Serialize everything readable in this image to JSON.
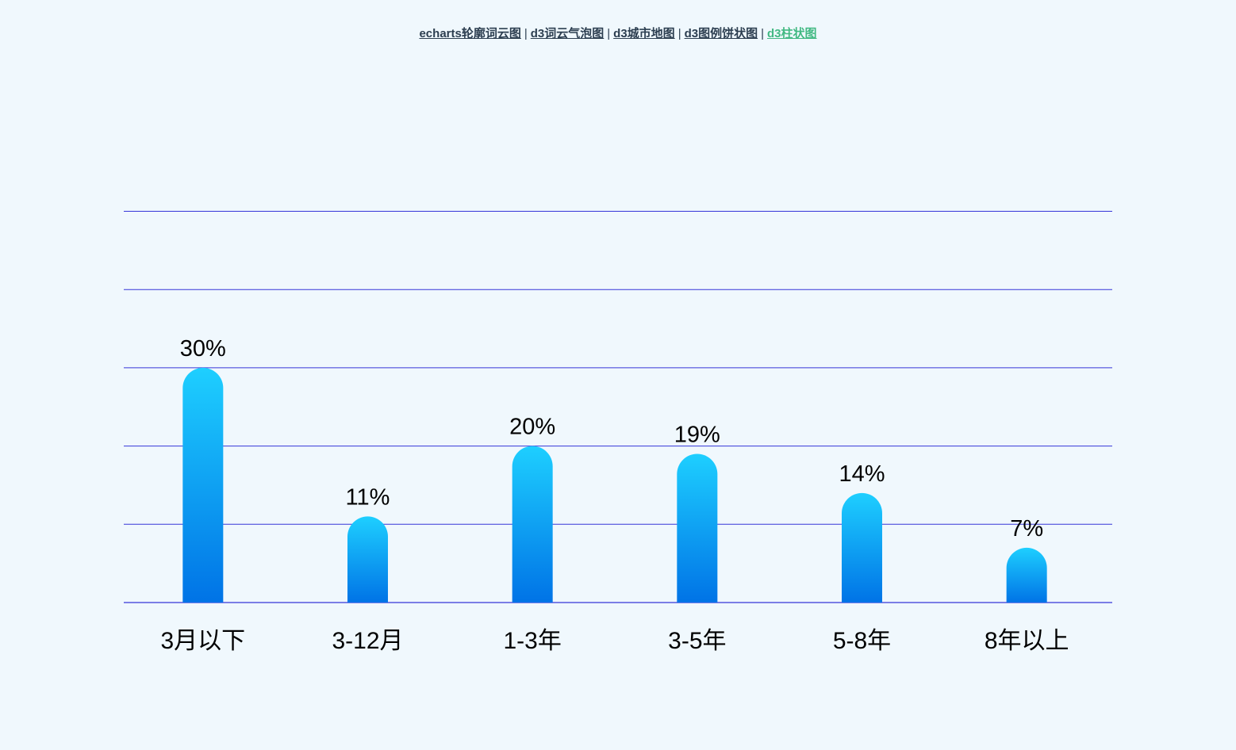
{
  "nav": {
    "links": [
      {
        "label": "echarts轮廓词云图",
        "active": false
      },
      {
        "label": "d3词云气泡图",
        "active": false
      },
      {
        "label": "d3城市地图",
        "active": false
      },
      {
        "label": "d3图例饼状图",
        "active": false
      },
      {
        "label": "d3柱状图",
        "active": true
      }
    ],
    "separator": "|"
  },
  "colors": {
    "bar_top": "#1ecfff",
    "bar_bottom": "#0073e6",
    "grid": "#3535d8",
    "active_link": "#42b983"
  },
  "chart_data": {
    "type": "bar",
    "categories": [
      "3月以下",
      "3-12月",
      "1-3年",
      "3-5年",
      "5-8年",
      "8年以上"
    ],
    "values": [
      30,
      11,
      20,
      19,
      14,
      7
    ],
    "data_labels": [
      "30%",
      "11%",
      "20%",
      "19%",
      "14%",
      "7%"
    ],
    "ylim": [
      0,
      50
    ],
    "grid": true,
    "bar_style": "rounded-top gradient"
  }
}
